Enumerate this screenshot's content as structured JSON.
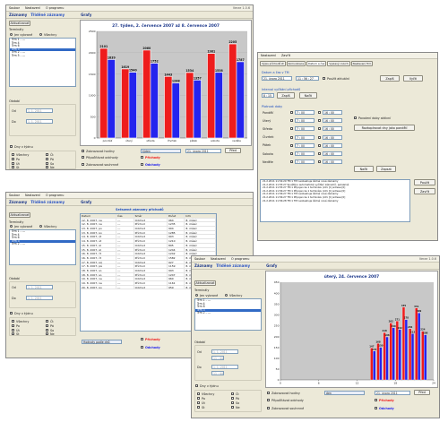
{
  "menu": {
    "items": [
      "Soubor",
      "Nastavení",
      "O programu"
    ],
    "version": "Verze 1.0.6"
  },
  "tabs": {
    "t1": "Záznamy",
    "t2": "Tříděné záznamy",
    "t3": "Grafy"
  },
  "sidebar": {
    "refresh": "Aktualizovat",
    "terminals": "Terminály",
    "only_selected": "Jen vybrané",
    "all": "Všechny",
    "terminal_items": [
      "Trm 1 - ---",
      "Trm 4",
      "Trm 6",
      "Trm 3",
      "Trm 2 - ---",
      "Trm 5 - ---"
    ],
    "period": "Období",
    "od": "Od",
    "do": "Do",
    "date_placeholder": "1. 1. 2011",
    "days": "Dny v týdnu",
    "days_all": "Všechny",
    "days_list": [
      "Po",
      "Út",
      "St",
      "Čt",
      "Pá",
      "So",
      "Ne"
    ]
  },
  "w1": {
    "title": "27. týden,  2. července 2007  až  8. července 2007",
    "opt_hours": "Zobrazovat hodiny",
    "opt_arrivals": "Připočítávat odchody",
    "opt_sum": "Zobrazovat souhrnné",
    "combo": "týden",
    "date": "21.   února   2011",
    "show": "Před",
    "arrivals": "Příchody",
    "departures": "Odchody"
  },
  "chart_data": [
    {
      "type": "bar",
      "title": "27. týden,  2. července 2007  až  8. července 2007",
      "categories": [
        "pondělí",
        "úterý",
        "středa",
        "čtvrtek",
        "pátek",
        "sobota",
        "neděle"
      ],
      "series": [
        {
          "name": "Příchody",
          "values": [
            2101,
            1619,
            2060,
            1443,
            1534,
            1981,
            2205
          ]
        },
        {
          "name": "Odchody",
          "values": [
            1839,
            1540,
            1752,
            1288,
            1357,
            1538,
            1787
          ]
        }
      ],
      "ylim": [
        0,
        2500
      ],
      "yticks": [
        0,
        500,
        1000,
        1500,
        2000,
        2500
      ]
    },
    {
      "type": "bar",
      "title": "úterý,   24. července 2007",
      "x": [
        14,
        15,
        16,
        17,
        18,
        19,
        20,
        21,
        22
      ],
      "series": [
        {
          "name": "Příchody",
          "values": [
            147,
            168,
            218,
            262,
            271,
            335,
            236,
            331,
            224
          ]
        },
        {
          "name": "Odchody",
          "values": [
            133,
            150,
            198,
            240,
            232,
            278,
            213,
            309,
            208
          ]
        }
      ],
      "ylim": [
        0,
        450
      ],
      "yticks": [
        0,
        50,
        100,
        150,
        200,
        250,
        300,
        350,
        400,
        450
      ],
      "xticks": [
        0,
        6,
        12,
        18,
        24
      ]
    }
  ],
  "w2": {
    "tabs": [
      "Výpis příchodů Ø",
      "Komunikace",
      "Datum a čas",
      "Vyslaný rozvrh",
      "Nastavení Trm"
    ],
    "menu": [
      "Nastavení",
      "Zavřít"
    ],
    "dt_label": "Datum a čas v TM",
    "dt_date": "21.   února   2011",
    "dt_time": "11 : 56 : 27",
    "use_current": "Použít aktuální",
    "write": "Zapiš",
    "read": "Vyčti",
    "interval": "Interval vyčítání příchodů",
    "int_val": "8 : 15",
    "int_write": "Zapiš",
    "int_read": "Načti",
    "validity": "Platnost doby",
    "days": [
      "Pondělí",
      "Úterý",
      "Středa",
      "Čtvrtek",
      "Pátek",
      "Sobota",
      "Neděle"
    ],
    "t_from": "7 : 00",
    "t_to": "16 : 00",
    "always_active": "Povolení doby aktivní",
    "copy": "Rozkopírovat dny jako pondělí",
    "load": "Načti",
    "submit": "Zapsat",
    "log": [
      "21.2.2011 11:54:29  TM 1  TM neobsahuje žádné nové záznamy",
      "21.2.2011 11:55:27  Spuštěno automatické vyčítání záznamů, paralelně",
      "21.2.2011 11:55:27  TM 1  Připojen ke 1 terminálu (info [1] adresa [0]",
      "21.2.2011 11:56:27  TM 1  Připojen ke 1 terminálu (info [1] adresa [0]",
      "21.2.2011 11:56:27  TM 1  TM neobsahuje žádné nové záznamy",
      "21.2.2011 11:56:27  TM 1  Připojen ke 1 terminálu (info [1] adresa [0]",
      "21.2.2011 11:56:28  TM 1  TM neobsahuje žádné nové záznamy"
    ],
    "use": "Použít",
    "close": "Zavřít"
  },
  "w3": {
    "title": "Seřazené záznamy příchodů",
    "cols": [
      "Datum",
      "Čas",
      "Směr",
      "Počet",
      "Info"
    ],
    "rows": [
      [
        "12. 8. 2007, ne",
        "---",
        "Odchod",
        "964",
        "8. měsíc"
      ],
      [
        "12. 8. 2007, ne",
        "---",
        "Příchod",
        "1235",
        "8. měsíc"
      ],
      [
        "13. 8. 2007, po",
        "---",
        "Odchod",
        "904",
        "8. měsíc"
      ],
      [
        "13. 8. 2007, po",
        "---",
        "Příchod",
        "1285",
        "8. měsíc"
      ],
      [
        "14. 8. 2007, út",
        "---",
        "Odchod",
        "903",
        "8. měsíc"
      ],
      [
        "14. 8. 2007, út",
        "---",
        "Příchod",
        "1210",
        "8. měsíc"
      ],
      [
        "15. 8. 2007, st",
        "---",
        "Odchod",
        "895",
        "8. měsíc"
      ],
      [
        "15. 8. 2007, st",
        "---",
        "Příchod",
        "1244",
        "8. měsíc"
      ],
      [
        "16. 8. 2007, čt",
        "---",
        "Odchod",
        "1242",
        "8. měsíc"
      ],
      [
        "16. 8. 2007, čt",
        "---",
        "Příchod",
        "1582",
        "8. měsíc"
      ],
      [
        "17. 8. 2007, pá",
        "---",
        "Odchod",
        "927",
        "8. měsíc"
      ],
      [
        "17. 8. 2007, pá",
        "---",
        "Příchod",
        "1159",
        "8. měsíc"
      ],
      [
        "18. 8. 2007, so",
        "---",
        "Odchod",
        "993",
        "8. měsíc"
      ],
      [
        "18. 8. 2007, so",
        "---",
        "Příchod",
        "1247",
        "8. měsíc"
      ],
      [
        "19. 8. 2007, ne",
        "---",
        "Odchod",
        "960",
        "8. měsíc"
      ],
      [
        "19. 8. 2007, ne",
        "---",
        "Příchod",
        "1161",
        "8. měsíc"
      ],
      [
        "20. 8. 2007, po",
        "---",
        "Odchod",
        "959",
        "8. měsíc"
      ]
    ],
    "combo": "Hodnoty podle dnů",
    "arrivals": "Příchody",
    "departures": "Odchody"
  },
  "w4": {
    "opt_hours": "Zobrazovat hodiny",
    "opt_arrivals": "Připočítávat odchody",
    "opt_sum": "Zobrazovat souhrnné",
    "combo": "den",
    "date": "21.   února   2011",
    "show": "Před",
    "arrivals": "Příchody",
    "departures": "Odchody",
    "date_placeholder": "1. 1. 2011",
    "time_placeholder": "11 : 44"
  },
  "colors": {
    "red": "#ee1c1c",
    "blue": "#2424ee",
    "plot_bg": "#c8c8c8"
  }
}
